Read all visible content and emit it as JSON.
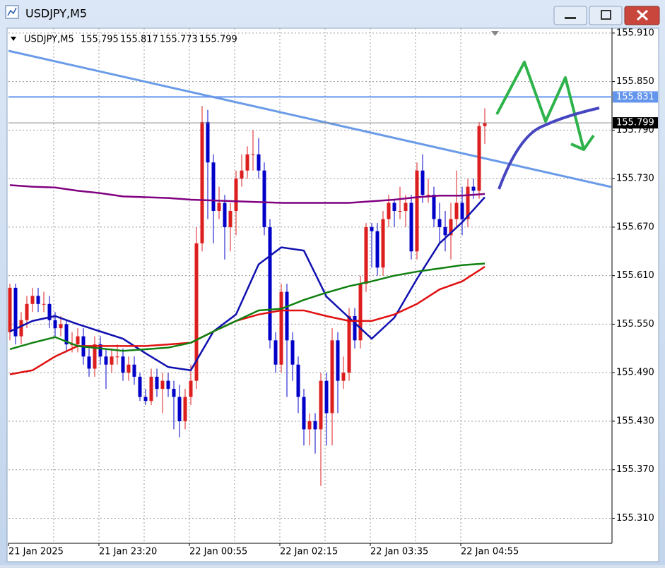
{
  "window": {
    "title": "USDJPY,M5"
  },
  "chart_data": {
    "type": "candlestick",
    "title": "USDJPY,M5",
    "categories": [
      "21 Jan 2025",
      null,
      null,
      null,
      null,
      null,
      null,
      null,
      null,
      null,
      null,
      null,
      null,
      null,
      null,
      null,
      "21 Jan 23:20",
      null,
      null,
      null,
      null,
      null,
      null,
      null,
      null,
      null,
      null,
      null,
      null,
      null,
      null,
      null,
      "22 Jan 00:55",
      null,
      null,
      null,
      null,
      null,
      null,
      null,
      null,
      null,
      null,
      null,
      null,
      null,
      null,
      null,
      "22 Jan 02:15",
      null,
      null,
      null,
      null,
      null,
      null,
      null,
      null,
      null,
      null,
      null,
      null,
      null,
      null,
      null,
      "22 Jan 03:35",
      null,
      null,
      null,
      null,
      null,
      null,
      null,
      null,
      null,
      null,
      null,
      null,
      null,
      null,
      null,
      "22 Jan 04:55",
      null,
      null,
      null,
      null
    ],
    "open": [
      155.54,
      155.595,
      155.535,
      155.555,
      155.575,
      155.585,
      155.575,
      155.575,
      155.555,
      155.545,
      155.55,
      155.525,
      155.525,
      155.535,
      155.51,
      155.495,
      155.525,
      155.51,
      155.5,
      155.51,
      155.51,
      155.49,
      155.5,
      155.485,
      155.46,
      155.455,
      155.485,
      155.47,
      155.48,
      155.47,
      155.46,
      155.43,
      155.46,
      155.48,
      155.65,
      155.8,
      155.75,
      155.69,
      155.7,
      155.67,
      155.69,
      155.73,
      155.74,
      155.76,
      155.76,
      155.74,
      155.67,
      155.53,
      155.5,
      155.59,
      155.53,
      155.5,
      155.46,
      155.42,
      155.43,
      155.42,
      155.48,
      155.44,
      155.53,
      155.48,
      155.49,
      155.56,
      155.53,
      155.6,
      155.67,
      155.665,
      155.62,
      155.68,
      155.7,
      155.69,
      155.69,
      155.7,
      155.64,
      155.74,
      155.71,
      155.71,
      155.68,
      155.67,
      155.66,
      155.68,
      155.7,
      155.68,
      155.72,
      155.715,
      155.795
    ],
    "high": [
      155.6,
      155.6,
      155.565,
      155.585,
      155.595,
      155.595,
      155.59,
      155.585,
      155.565,
      155.56,
      155.555,
      155.54,
      155.545,
      155.545,
      155.52,
      155.535,
      155.535,
      155.52,
      155.52,
      155.525,
      155.52,
      155.51,
      155.51,
      155.49,
      155.47,
      155.495,
      155.495,
      155.49,
      155.49,
      155.48,
      155.475,
      155.47,
      155.5,
      155.67,
      155.82,
      155.815,
      155.76,
      155.72,
      155.71,
      155.7,
      155.74,
      155.76,
      155.77,
      155.79,
      155.78,
      155.75,
      155.68,
      155.54,
      155.6,
      155.6,
      155.54,
      155.51,
      155.47,
      155.44,
      155.44,
      155.49,
      155.49,
      155.545,
      155.54,
      155.51,
      155.57,
      155.57,
      155.61,
      155.675,
      155.675,
      155.675,
      155.69,
      155.71,
      155.705,
      155.72,
      155.71,
      155.71,
      155.75,
      155.76,
      155.73,
      155.72,
      155.7,
      155.69,
      155.7,
      155.74,
      155.72,
      155.73,
      155.73,
      155.8,
      155.817
    ],
    "low": [
      155.53,
      155.525,
      155.525,
      155.545,
      155.565,
      155.565,
      155.565,
      155.545,
      155.535,
      155.535,
      155.515,
      155.515,
      155.515,
      155.5,
      155.485,
      155.485,
      155.5,
      155.47,
      155.49,
      155.5,
      155.48,
      155.48,
      155.475,
      155.455,
      155.45,
      155.45,
      155.46,
      155.44,
      155.46,
      155.42,
      155.41,
      155.42,
      155.45,
      155.47,
      155.64,
      155.68,
      155.65,
      155.68,
      155.63,
      155.64,
      155.66,
      155.72,
      155.73,
      155.74,
      155.73,
      155.66,
      155.52,
      155.49,
      155.49,
      155.46,
      155.48,
      155.44,
      155.4,
      155.4,
      155.39,
      155.35,
      155.4,
      155.4,
      155.44,
      155.47,
      155.48,
      155.52,
      155.52,
      155.59,
      155.62,
      155.61,
      155.61,
      155.67,
      155.67,
      155.68,
      155.67,
      155.63,
      155.63,
      155.7,
      155.7,
      155.67,
      155.65,
      155.64,
      155.63,
      155.67,
      155.66,
      155.67,
      155.705,
      155.705,
      155.773
    ],
    "close": [
      155.595,
      155.535,
      155.555,
      155.575,
      155.585,
      155.575,
      155.575,
      155.555,
      155.545,
      155.55,
      155.525,
      155.525,
      155.535,
      155.51,
      155.495,
      155.525,
      155.51,
      155.5,
      155.51,
      155.51,
      155.49,
      155.5,
      155.485,
      155.46,
      155.455,
      155.485,
      155.47,
      155.48,
      155.47,
      155.46,
      155.43,
      155.46,
      155.48,
      155.65,
      155.8,
      155.75,
      155.69,
      155.7,
      155.67,
      155.69,
      155.73,
      155.74,
      155.76,
      155.76,
      155.74,
      155.67,
      155.53,
      155.5,
      155.59,
      155.53,
      155.5,
      155.46,
      155.42,
      155.43,
      155.42,
      155.48,
      155.44,
      155.53,
      155.48,
      155.49,
      155.56,
      155.53,
      155.6,
      155.67,
      155.665,
      155.62,
      155.68,
      155.7,
      155.69,
      155.69,
      155.7,
      155.64,
      155.74,
      155.71,
      155.71,
      155.68,
      155.67,
      155.66,
      155.68,
      155.7,
      155.68,
      155.72,
      155.715,
      155.795,
      155.799
    ],
    "up_color": "#dc1e1e",
    "down_color": "#0000c8",
    "indicators": [
      {
        "color": "#1010b0",
        "x": [
          0,
          4,
          8,
          12,
          16,
          20,
          24,
          28,
          32,
          36,
          40,
          44,
          48,
          52,
          56,
          60,
          64,
          68,
          72,
          76,
          80,
          84
        ],
        "values": [
          155.541,
          155.554,
          155.56,
          155.55,
          155.541,
          155.532,
          155.514,
          155.497,
          155.493,
          155.541,
          155.562,
          155.624,
          155.645,
          155.641,
          155.584,
          155.558,
          155.532,
          155.558,
          155.606,
          155.65,
          155.676,
          155.707
        ]
      },
      {
        "color": "#e01010",
        "x": [
          0,
          4,
          8,
          12,
          16,
          20,
          24,
          28,
          32,
          36,
          40,
          44,
          48,
          52,
          56,
          60,
          64,
          68,
          72,
          76,
          80,
          84
        ],
        "values": [
          155.488,
          155.493,
          155.51,
          155.523,
          155.523,
          155.523,
          155.523,
          155.525,
          155.527,
          155.541,
          155.554,
          155.562,
          155.567,
          155.567,
          155.56,
          155.554,
          155.554,
          155.562,
          155.575,
          155.593,
          155.603,
          155.621
        ]
      },
      {
        "color": "#108010",
        "x": [
          0,
          4,
          8,
          12,
          16,
          20,
          24,
          28,
          32,
          36,
          40,
          44,
          48,
          52,
          56,
          60,
          64,
          68,
          72,
          76,
          80,
          84
        ],
        "values": [
          155.519,
          155.527,
          155.534,
          155.523,
          155.52,
          155.517,
          155.519,
          155.521,
          155.527,
          155.541,
          155.554,
          155.567,
          155.569,
          155.58,
          155.589,
          155.597,
          155.603,
          155.61,
          155.615,
          155.619,
          155.623,
          155.625
        ]
      },
      {
        "color": "#800080",
        "x": [
          0,
          4,
          8,
          12,
          16,
          20,
          24,
          28,
          32,
          36,
          40,
          44,
          48,
          52,
          56,
          60,
          64,
          68,
          72,
          76,
          80,
          84
        ],
        "values": [
          155.722,
          155.72,
          155.719,
          155.715,
          155.712,
          155.708,
          155.707,
          155.706,
          155.704,
          155.703,
          155.702,
          155.701,
          155.7,
          155.7,
          155.7,
          155.7,
          155.702,
          155.704,
          155.707,
          155.709,
          155.709,
          155.711
        ]
      }
    ],
    "hline": {
      "value": 155.831,
      "color": "#6495ed"
    },
    "ylim": [
      155.279,
      155.916
    ],
    "yticks": [
      {
        "value": 155.91,
        "label": "155.910"
      },
      {
        "value": 155.85,
        "label": "155.850"
      },
      {
        "value": 155.79,
        "label": "155.790"
      },
      {
        "value": 155.73,
        "label": "155.730"
      },
      {
        "value": 155.67,
        "label": "155.670"
      },
      {
        "value": 155.61,
        "label": "155.610"
      },
      {
        "value": 155.55,
        "label": "155.550"
      },
      {
        "value": 155.49,
        "label": "155.490"
      },
      {
        "value": 155.43,
        "label": "155.430"
      },
      {
        "value": 155.37,
        "label": "155.370"
      },
      {
        "value": 155.31,
        "label": "155.310"
      }
    ],
    "grid": true
  }
}
